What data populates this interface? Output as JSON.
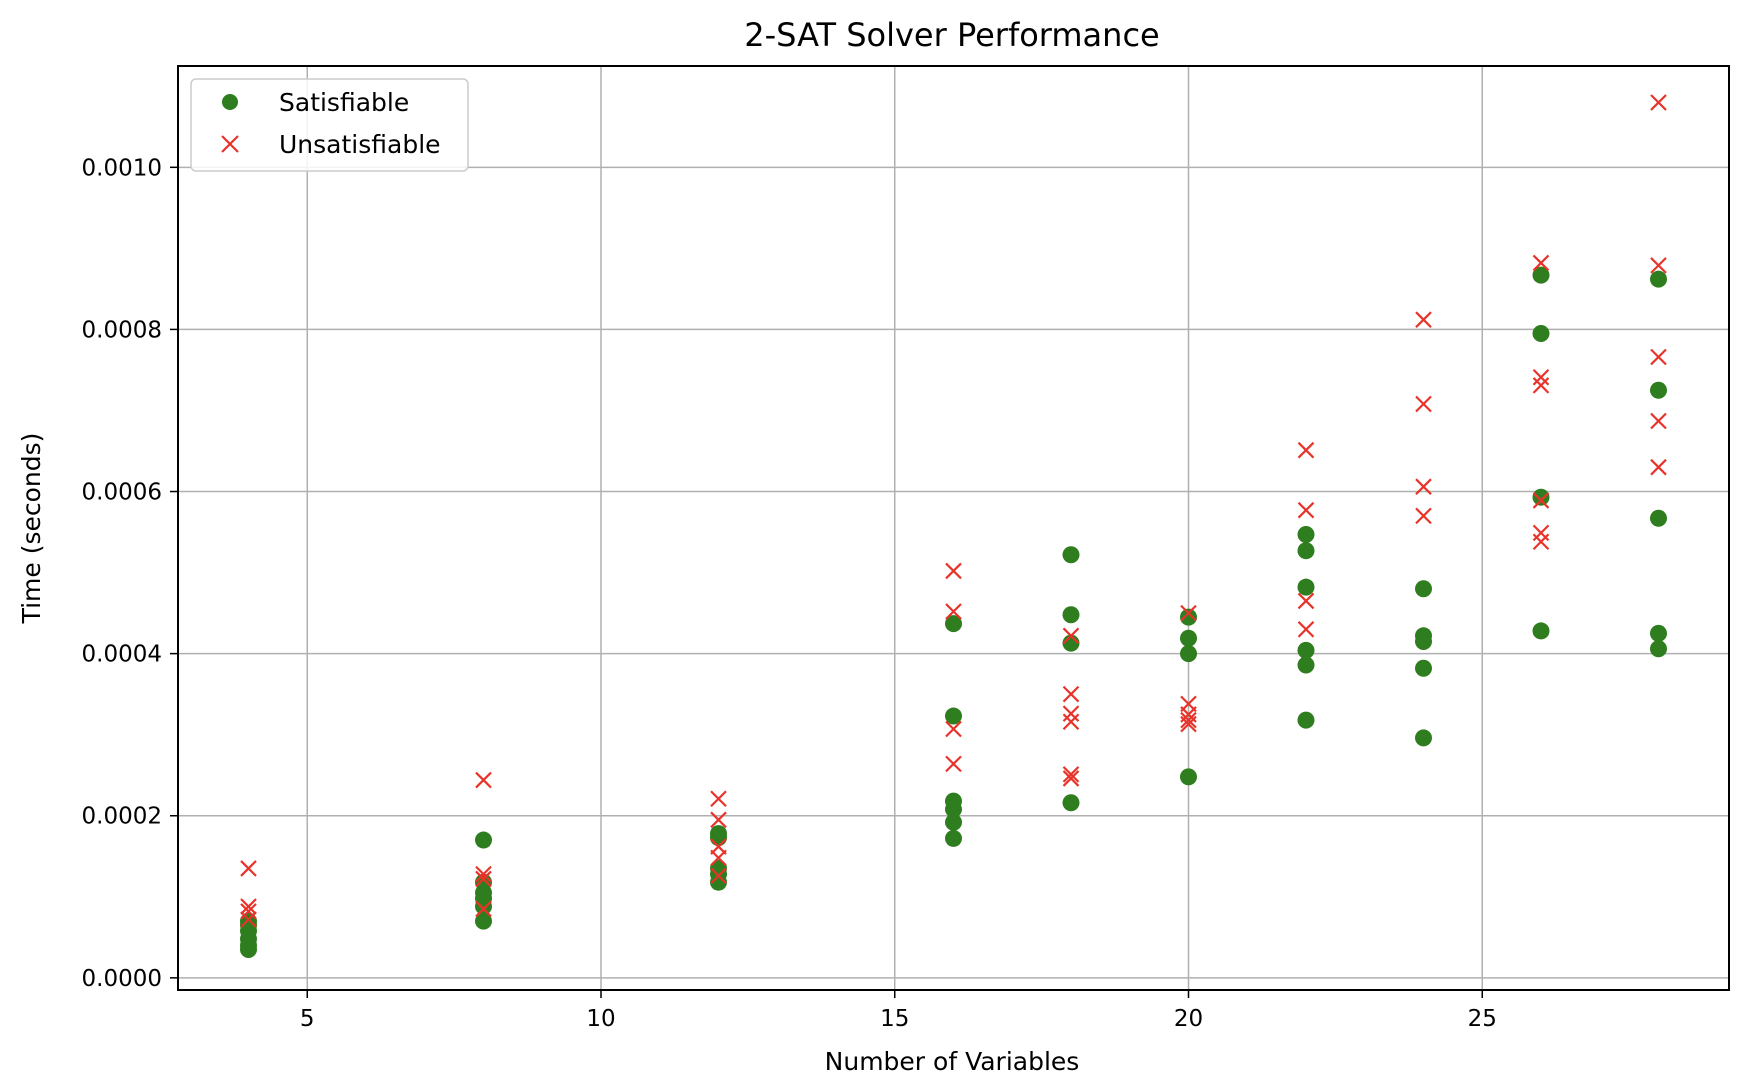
{
  "chart_data": {
    "type": "scatter",
    "title": "2-SAT Solver Performance",
    "xlabel": "Number of Variables",
    "ylabel": "Time (seconds)",
    "xlim": [
      2.8,
      29.2
    ],
    "ylim": [
      -1.5e-05,
      0.001125
    ],
    "xticks": [
      5,
      10,
      15,
      20,
      25
    ],
    "xtick_labels": [
      "5",
      "10",
      "15",
      "20",
      "25"
    ],
    "yticks": [
      0.0,
      0.0002,
      0.0004,
      0.0006,
      0.0008,
      0.001
    ],
    "ytick_labels": [
      "0.0000",
      "0.0002",
      "0.0004",
      "0.0006",
      "0.0008",
      "0.0010"
    ],
    "grid": true,
    "legend_position": "top-left",
    "series": [
      {
        "name": "Satisfiable",
        "marker": "circle",
        "color": "#2e7d1e",
        "points": [
          [
            4,
            3.5e-05
          ],
          [
            4,
            4e-05
          ],
          [
            4,
            4.8e-05
          ],
          [
            4,
            5.8e-05
          ],
          [
            4,
            6.5e-05
          ],
          [
            4,
            7e-05
          ],
          [
            8,
            0.00017
          ],
          [
            8,
            0.000118
          ],
          [
            8,
            0.000105
          ],
          [
            8,
            9.8e-05
          ],
          [
            8,
            8.8e-05
          ],
          [
            8,
            7e-05
          ],
          [
            12,
            0.000178
          ],
          [
            12,
            0.000173
          ],
          [
            12,
            0.000135
          ],
          [
            12,
            0.000128
          ],
          [
            12,
            0.000118
          ],
          [
            16,
            0.000437
          ],
          [
            16,
            0.000323
          ],
          [
            16,
            0.000218
          ],
          [
            16,
            0.000208
          ],
          [
            16,
            0.000192
          ],
          [
            16,
            0.000172
          ],
          [
            18,
            0.000522
          ],
          [
            18,
            0.000448
          ],
          [
            18,
            0.000413
          ],
          [
            18,
            0.000216
          ],
          [
            20,
            0.000445
          ],
          [
            20,
            0.000419
          ],
          [
            20,
            0.0004
          ],
          [
            20,
            0.000248
          ],
          [
            22,
            0.000547
          ],
          [
            22,
            0.000527
          ],
          [
            22,
            0.000482
          ],
          [
            22,
            0.000404
          ],
          [
            22,
            0.000386
          ],
          [
            22,
            0.000318
          ],
          [
            24,
            0.00048
          ],
          [
            24,
            0.000422
          ],
          [
            24,
            0.000415
          ],
          [
            24,
            0.000382
          ],
          [
            24,
            0.000296
          ],
          [
            26,
            0.000867
          ],
          [
            26,
            0.000795
          ],
          [
            26,
            0.000593
          ],
          [
            26,
            0.000428
          ],
          [
            28,
            0.000862
          ],
          [
            28,
            0.000725
          ],
          [
            28,
            0.000567
          ],
          [
            28,
            0.000425
          ],
          [
            28,
            0.000406
          ]
        ]
      },
      {
        "name": "Unsatisfiable",
        "marker": "x",
        "color": "#e8332a",
        "points": [
          [
            4,
            0.000135
          ],
          [
            4,
            8.8e-05
          ],
          [
            4,
            8.2e-05
          ],
          [
            4,
            7.2e-05
          ],
          [
            8,
            0.000244
          ],
          [
            8,
            0.000128
          ],
          [
            8,
            0.000122
          ],
          [
            8,
            8.5e-05
          ],
          [
            12,
            0.000221
          ],
          [
            12,
            0.000195
          ],
          [
            12,
            0.000162
          ],
          [
            12,
            0.000148
          ],
          [
            12,
            0.000126
          ],
          [
            16,
            0.000502
          ],
          [
            16,
            0.000452
          ],
          [
            16,
            0.000307
          ],
          [
            16,
            0.000264
          ],
          [
            18,
            0.000422
          ],
          [
            18,
            0.00035
          ],
          [
            18,
            0.000326
          ],
          [
            18,
            0.000316
          ],
          [
            18,
            0.000251
          ],
          [
            18,
            0.000246
          ],
          [
            20,
            0.00045
          ],
          [
            20,
            0.000338
          ],
          [
            20,
            0.000325
          ],
          [
            20,
            0.000318
          ],
          [
            20,
            0.000313
          ],
          [
            22,
            0.000651
          ],
          [
            22,
            0.000577
          ],
          [
            22,
            0.000465
          ],
          [
            22,
            0.00043
          ],
          [
            24,
            0.000812
          ],
          [
            24,
            0.000708
          ],
          [
            24,
            0.000606
          ],
          [
            24,
            0.00057
          ],
          [
            26,
            0.000882
          ],
          [
            26,
            0.000741
          ],
          [
            26,
            0.000731
          ],
          [
            26,
            0.000589
          ],
          [
            26,
            0.000549
          ],
          [
            26,
            0.000538
          ],
          [
            28,
            0.00108
          ],
          [
            28,
            0.000879
          ],
          [
            28,
            0.000766
          ],
          [
            28,
            0.000687
          ],
          [
            28,
            0.00063
          ]
        ]
      }
    ]
  }
}
